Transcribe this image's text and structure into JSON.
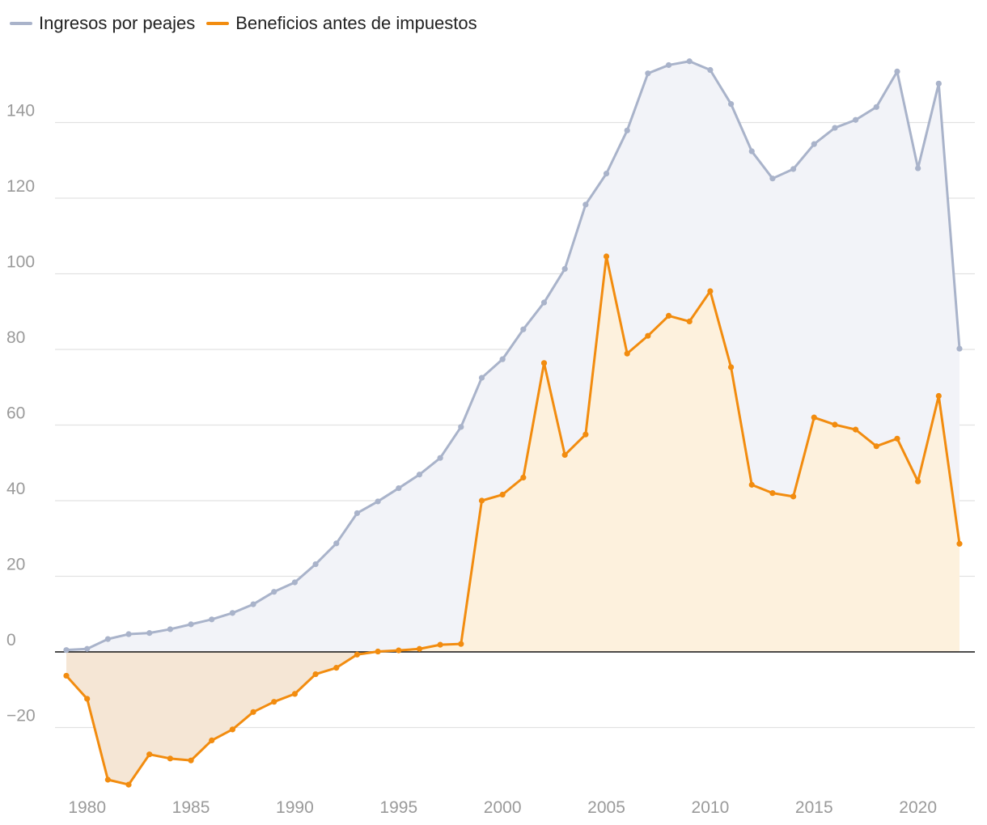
{
  "chart_data": {
    "type": "area",
    "title": "",
    "xlabel": "",
    "ylabel": "",
    "xlim": [
      1979,
      2022
    ],
    "ylim": [
      -36,
      160
    ],
    "yticks": [
      -20,
      0,
      20,
      40,
      60,
      80,
      100,
      120,
      140
    ],
    "xticks": [
      1980,
      1985,
      1990,
      1995,
      2000,
      2005,
      2010,
      2015,
      2020
    ],
    "legend_position": "top-left",
    "x": [
      1979,
      1980,
      1981,
      1982,
      1983,
      1984,
      1985,
      1986,
      1987,
      1988,
      1989,
      1990,
      1991,
      1992,
      1993,
      1994,
      1995,
      1996,
      1997,
      1998,
      1999,
      2000,
      2001,
      2002,
      2003,
      2004,
      2005,
      2006,
      2007,
      2008,
      2009,
      2010,
      2011,
      2012,
      2013,
      2014,
      2015,
      2016,
      2017,
      2018,
      2019,
      2020,
      2021,
      2022
    ],
    "series": [
      {
        "name": "Ingresos por peajes",
        "color": "#a9b3ca",
        "fill": "#f2f3f8",
        "values": [
          0.5,
          0.8,
          3.4,
          4.7,
          5.0,
          6.0,
          7.3,
          8.6,
          10.3,
          12.6,
          15.9,
          18.4,
          23.2,
          28.7,
          36.7,
          39.8,
          43.3,
          46.9,
          51.3,
          59.5,
          72.5,
          77.4,
          85.3,
          92.4,
          101.3,
          118.3,
          126.5,
          137.9,
          153.0,
          155.2,
          156.2,
          153.9,
          144.9,
          132.4,
          125.2,
          127.7,
          134.3,
          138.6,
          140.7,
          144.1,
          153.5,
          127.9,
          150.3,
          80.2
        ]
      },
      {
        "name": "Beneficios antes de impuestos",
        "color": "#f28c0f",
        "fill": "#fdf1dd",
        "fill_negative": "#f5e6d5",
        "values": [
          -6.3,
          -12.4,
          -33.8,
          -35.1,
          -27.1,
          -28.2,
          -28.7,
          -23.4,
          -20.5,
          -15.9,
          -13.2,
          -11.1,
          -5.9,
          -4.2,
          -0.7,
          0.1,
          0.4,
          0.8,
          1.9,
          2.1,
          40.0,
          41.6,
          46.1,
          76.4,
          52.1,
          57.5,
          104.6,
          78.9,
          83.6,
          88.9,
          87.4,
          95.4,
          75.3,
          44.2,
          42.0,
          41.1,
          62.0,
          60.1,
          58.8,
          54.4,
          56.4,
          45.1,
          67.7,
          28.6
        ]
      }
    ]
  }
}
